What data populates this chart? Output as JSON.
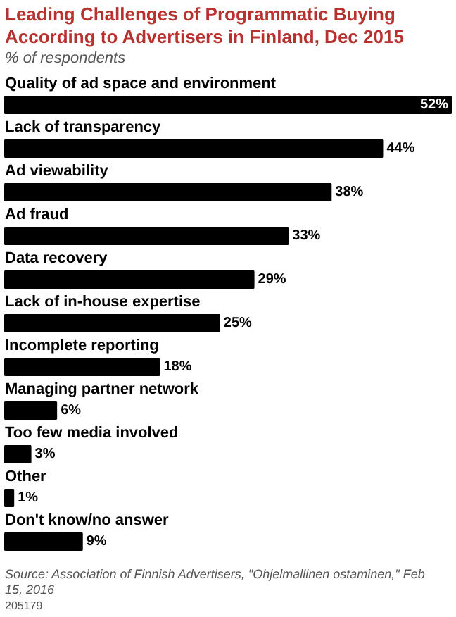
{
  "chart_data": {
    "type": "bar",
    "orientation": "horizontal",
    "title": "Leading Challenges of Programmatic Buying According to Advertisers in Finland, Dec 2015",
    "subtitle": "% of respondents",
    "categories": [
      "Quality of ad space and environment",
      "Lack of transparency",
      "Ad viewability",
      "Ad fraud",
      "Data recovery",
      "Lack of in-house expertise",
      "Incomplete reporting",
      "Managing partner network",
      "Too few media involved",
      "Other",
      "Don't know/no answer"
    ],
    "values": [
      52,
      44,
      38,
      33,
      29,
      25,
      18,
      6,
      3,
      1,
      9
    ],
    "value_labels": [
      "52%",
      "44%",
      "38%",
      "33%",
      "29%",
      "25%",
      "18%",
      "6%",
      "3%",
      "1%",
      "9%"
    ],
    "color": "#000000",
    "annotations": [
      "Source: Association of Finnish Advertisers, \"Ohjelmallinen ostaminen,\" Feb 15, 2016",
      "205179"
    ]
  }
}
